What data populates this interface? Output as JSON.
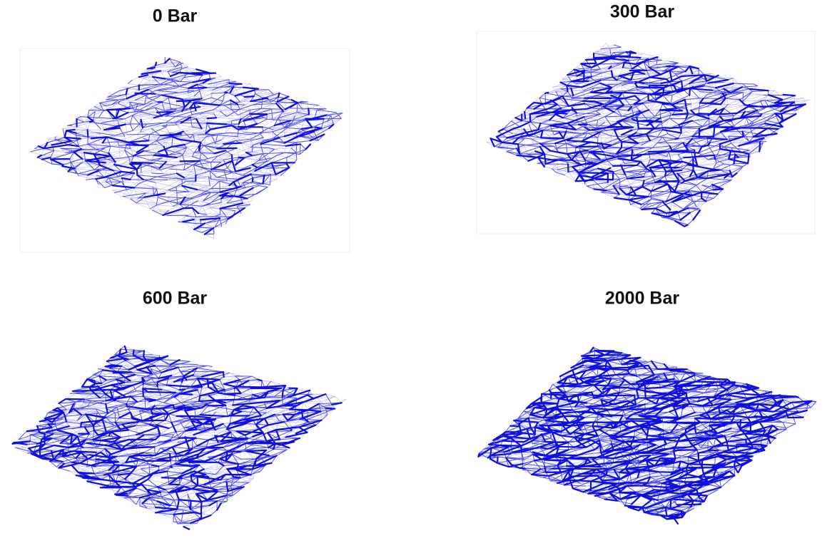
{
  "panels": [
    {
      "title": "0 Bar"
    },
    {
      "title": "300 Bar"
    },
    {
      "title": "600 Bar"
    },
    {
      "title": "2000 Bar"
    }
  ]
}
